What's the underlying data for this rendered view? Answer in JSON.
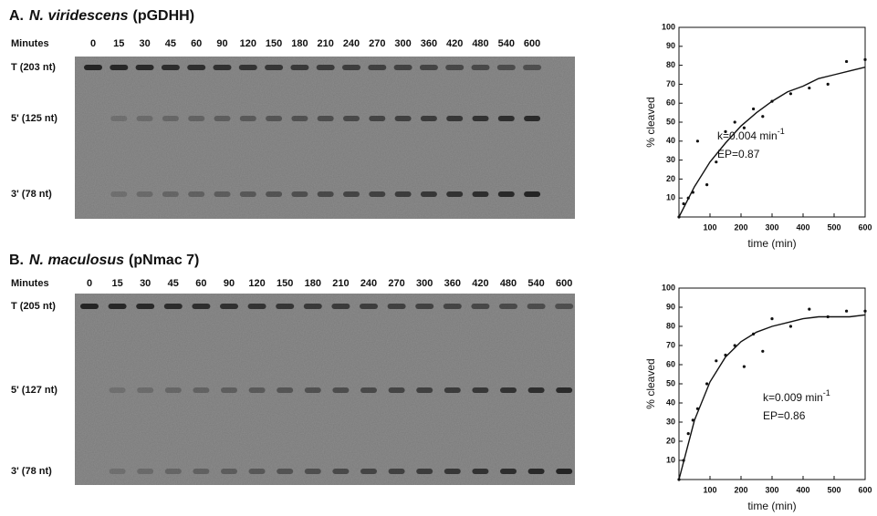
{
  "panels": [
    {
      "letter": "A.",
      "species": "N. viridescens",
      "plasmid": "(pGDHH)",
      "lanes_label": "Minutes",
      "lanes": [
        0,
        15,
        30,
        45,
        60,
        90,
        120,
        150,
        180,
        210,
        240,
        270,
        300,
        360,
        420,
        480,
        540,
        600
      ],
      "bands": [
        "T (203 nt)",
        "5' (125 nt)",
        "3' (78 nt)"
      ]
    },
    {
      "letter": "B.",
      "species": "N. maculosus",
      "plasmid": "(pNmac 7)",
      "lanes_label": "Minutes",
      "lanes": [
        0,
        15,
        30,
        45,
        60,
        90,
        120,
        150,
        180,
        210,
        240,
        270,
        300,
        360,
        420,
        480,
        540,
        600
      ],
      "bands": [
        "T (205 nt)",
        "5' (127 nt)",
        "3' (78 nt)"
      ]
    }
  ],
  "chart_data": [
    {
      "type": "scatter",
      "x_label": "time (min)",
      "y_label": "% cleaved",
      "xlim": [
        0,
        600
      ],
      "ylim": [
        0,
        100
      ],
      "xticks": [
        100,
        200,
        300,
        400,
        500,
        600
      ],
      "yticks": [
        10,
        20,
        30,
        40,
        50,
        60,
        70,
        80,
        90,
        100
      ],
      "annotations": [
        {
          "text": "k=0.004 min",
          "sup": "-1"
        },
        {
          "text": "EP=0.87"
        }
      ],
      "series": [
        {
          "mode": "markers",
          "color": "#111111",
          "x": [
            0,
            15,
            30,
            45,
            60,
            90,
            120,
            150,
            180,
            210,
            240,
            270,
            300,
            360,
            420,
            480,
            540,
            600
          ],
          "values": [
            0,
            7,
            10,
            13,
            40,
            17,
            29,
            45,
            50,
            47,
            57,
            53,
            61,
            65,
            68,
            70,
            82,
            83
          ]
        },
        {
          "mode": "line",
          "color": "#111111",
          "x": [
            0,
            50,
            100,
            150,
            200,
            250,
            300,
            350,
            400,
            450,
            500,
            550,
            600
          ],
          "values": [
            0,
            16,
            29,
            39,
            48,
            55,
            61,
            66,
            69,
            73,
            75,
            77,
            79
          ]
        }
      ]
    },
    {
      "type": "scatter",
      "x_label": "time (min)",
      "y_label": "% cleaved",
      "xlim": [
        0,
        600
      ],
      "ylim": [
        0,
        100
      ],
      "xticks": [
        100,
        200,
        300,
        400,
        500,
        600
      ],
      "yticks": [
        10,
        20,
        30,
        40,
        50,
        60,
        70,
        80,
        90,
        100
      ],
      "annotations": [
        {
          "text": "k=0.009 min",
          "sup": "-1"
        },
        {
          "text": "EP=0.86"
        }
      ],
      "series": [
        {
          "mode": "markers",
          "color": "#111111",
          "x": [
            0,
            15,
            30,
            45,
            60,
            90,
            120,
            150,
            180,
            210,
            240,
            270,
            300,
            360,
            420,
            480,
            540,
            600
          ],
          "values": [
            0,
            10,
            24,
            31,
            37,
            50,
            62,
            65,
            70,
            59,
            76,
            67,
            84,
            80,
            89,
            85,
            88,
            88
          ]
        },
        {
          "mode": "line",
          "color": "#111111",
          "x": [
            0,
            50,
            100,
            150,
            200,
            250,
            300,
            350,
            400,
            450,
            500,
            550,
            600
          ],
          "values": [
            0,
            31,
            51,
            64,
            72,
            77,
            80,
            82,
            84,
            85,
            85,
            85,
            86
          ]
        }
      ]
    }
  ]
}
